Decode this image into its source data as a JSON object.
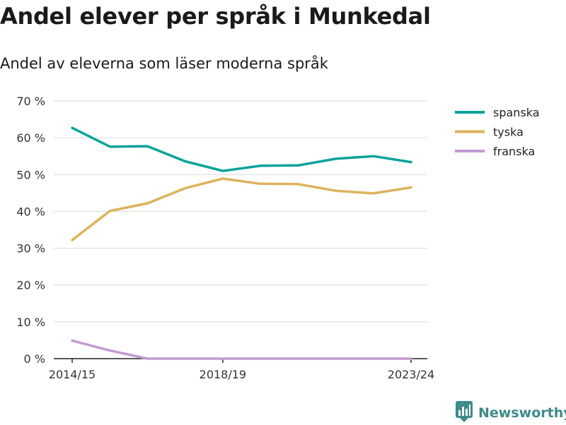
{
  "title": "Andel elever per språk i Munkedal",
  "subtitle": "Andel av eleverna som läser moderna språk",
  "brand": {
    "name": "Newsworthy",
    "icon": "bar-chart-logo-icon"
  },
  "colors": {
    "spanska": "#0aa39a",
    "tyska": "#dcb25c",
    "franska": "#c29bd1",
    "grid": "#d9d9d9",
    "axis": "#222222"
  },
  "chart_data": {
    "type": "line",
    "x": [
      "2014/15",
      "2015/16",
      "2016/17",
      "2017/18",
      "2018/19",
      "2019/20",
      "2020/21",
      "2021/22",
      "2022/23",
      "2023/24"
    ],
    "x_tick_labels": [
      "2014/15",
      "2018/19",
      "2023/24"
    ],
    "y_ticks": [
      "0 %",
      "10 %",
      "20 %",
      "30 %",
      "40 %",
      "50 %",
      "60 %",
      "70 %"
    ],
    "ylim": [
      0,
      70
    ],
    "grid": true,
    "legend_position": "top-right",
    "series": [
      {
        "name": "spanska",
        "values": [
          62.7,
          57.6,
          57.7,
          53.6,
          51.0,
          52.4,
          52.5,
          54.3,
          55.0,
          53.4
        ]
      },
      {
        "name": "tyska",
        "values": [
          32.2,
          40.1,
          42.2,
          46.3,
          48.9,
          47.5,
          47.4,
          45.6,
          44.9,
          46.5
        ]
      },
      {
        "name": "franska",
        "values": [
          4.9,
          2.2,
          0,
          0,
          0,
          0,
          0,
          0,
          0,
          0
        ]
      }
    ]
  }
}
